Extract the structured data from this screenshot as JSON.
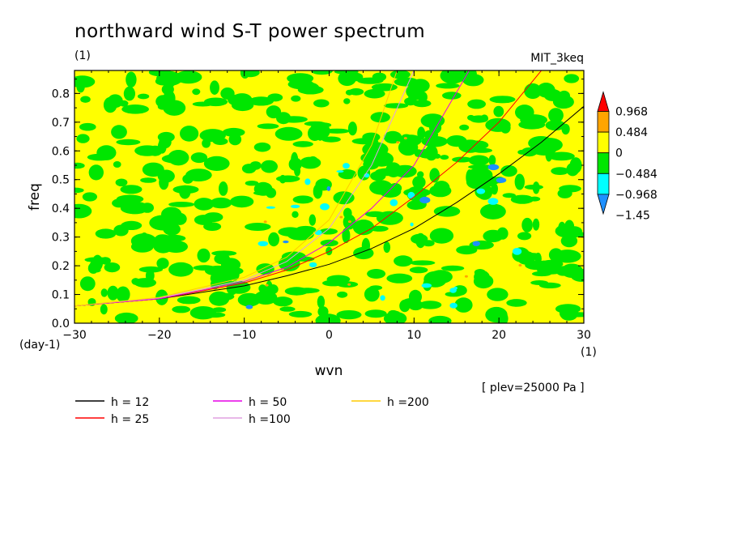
{
  "chart_data": {
    "type": "heatmap",
    "title": "northward wind S-T power spectrum",
    "subtitle_left": "(1)",
    "subtitle_right": "MIT_3keq",
    "xlabel": "wvn",
    "ylabel": "freq",
    "x_unit": "(1)",
    "y_unit": "(day-1)",
    "xlim": [
      -30,
      30
    ],
    "ylim": [
      0,
      0.88
    ],
    "x_ticks": [
      -30,
      -20,
      -10,
      0,
      10,
      20,
      30
    ],
    "x_tick_labels": [
      "−30",
      "−20",
      "−10",
      "0",
      "10",
      "20",
      "30"
    ],
    "y_ticks": [
      0.0,
      0.1,
      0.2,
      0.3,
      0.4,
      0.5,
      0.6,
      0.7,
      0.8
    ],
    "y_tick_labels": [
      "0.0",
      "0.1",
      "0.2",
      "0.3",
      "0.4",
      "0.5",
      "0.6",
      "0.7",
      "0.8"
    ],
    "annotation": "[ plev=25000 Pa ]",
    "colorbar": {
      "levels": [
        -1.45,
        -0.968,
        -0.484,
        0,
        0.484,
        0.968
      ],
      "labels": [
        "−1.45",
        "−0.968",
        "−0.484",
        "0",
        "0.484",
        "0.968"
      ],
      "colors": [
        "#1e90ff",
        "#00ffff",
        "#00e600",
        "#ffff00",
        "#ffa500",
        "#ff0000"
      ],
      "below_color": "#1e90ff",
      "above_color": "#ff0000"
    },
    "field_note": "noisy field mostly between -0.484 and 0.484, green and yellow patches with small cyan/blue spots",
    "series": [
      {
        "name": "h = 12",
        "color": "#000000",
        "x": [
          -30,
          -20,
          -10,
          -5,
          0,
          5,
          10,
          15,
          20,
          25,
          30
        ],
        "y": [
          0.06,
          0.085,
          0.13,
          0.165,
          0.205,
          0.26,
          0.33,
          0.42,
          0.52,
          0.63,
          0.755
        ]
      },
      {
        "name": "h = 25",
        "color": "#ff0000",
        "x": [
          -30,
          -20,
          -10,
          -5,
          0,
          5,
          10,
          15,
          20,
          25
        ],
        "y": [
          0.06,
          0.085,
          0.14,
          0.185,
          0.25,
          0.33,
          0.44,
          0.56,
          0.7,
          0.88
        ]
      },
      {
        "name": "h = 50",
        "color": "#e600e6",
        "x": [
          -30,
          -20,
          -10,
          -5,
          0,
          5,
          10,
          16.5
        ],
        "y": [
          0.06,
          0.085,
          0.145,
          0.195,
          0.28,
          0.4,
          0.55,
          0.88
        ]
      },
      {
        "name": "h =100",
        "color": "#e0a0e0",
        "x": [
          -30,
          -20,
          -10,
          -5,
          0,
          5,
          10
        ],
        "y": [
          0.06,
          0.088,
          0.15,
          0.215,
          0.33,
          0.55,
          0.88
        ]
      },
      {
        "name": "h =200",
        "color": "#ffcc00",
        "x": [
          -30,
          -20,
          -10,
          -5,
          0,
          5,
          8
        ],
        "y": [
          0.06,
          0.09,
          0.16,
          0.23,
          0.36,
          0.62,
          0.88
        ]
      }
    ],
    "legend_placement": "bottom"
  }
}
